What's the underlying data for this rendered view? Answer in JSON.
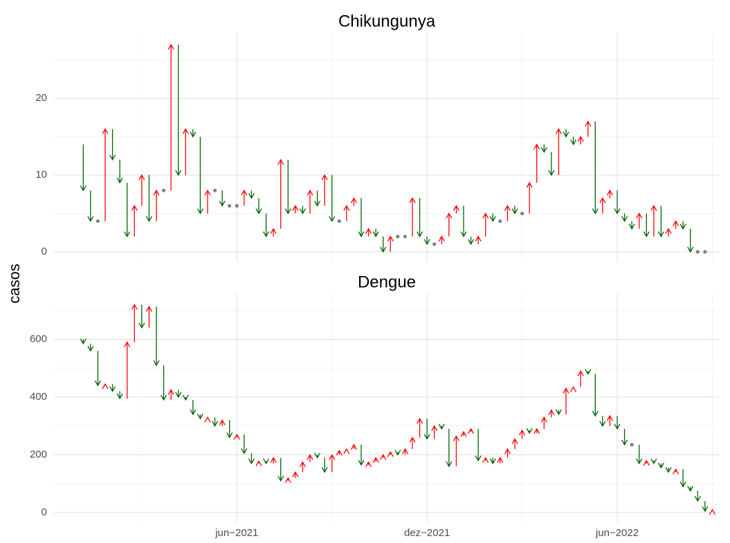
{
  "ylabel": "casos",
  "chart_data": [
    {
      "type": "arrow",
      "title": "Chikungunya",
      "x": [
        1,
        2,
        3,
        4,
        5,
        6,
        7,
        8,
        9,
        10,
        11,
        12,
        13,
        14,
        15,
        16,
        17,
        18,
        19,
        20,
        21,
        22,
        23,
        24,
        25,
        26,
        27,
        28,
        29,
        30,
        31,
        32,
        33,
        34,
        35,
        36,
        37,
        38,
        39,
        40,
        41,
        42,
        43,
        44,
        45,
        46,
        47,
        48,
        49,
        50,
        51,
        52,
        53,
        54,
        55,
        56,
        57,
        58,
        59,
        60,
        61,
        62,
        63,
        64,
        65,
        66,
        67,
        68,
        69,
        70,
        71,
        72,
        73,
        74,
        75,
        76,
        77,
        78,
        79,
        80,
        81,
        82,
        83,
        84,
        85,
        86
      ],
      "start": [
        14,
        8,
        4,
        4,
        16,
        12,
        9,
        2,
        6,
        10,
        4,
        8,
        8,
        27,
        10,
        16,
        15,
        5,
        8,
        8,
        6,
        6,
        6,
        8,
        7,
        5,
        2,
        3,
        12,
        5,
        6,
        5,
        8,
        6,
        10,
        4,
        4,
        6,
        7,
        2,
        3,
        2,
        0,
        2,
        2,
        2,
        7,
        2,
        1,
        1,
        2,
        5,
        6,
        2,
        1,
        2,
        5,
        4,
        4,
        6,
        5,
        5,
        9,
        14,
        13,
        10,
        16,
        15,
        14,
        15,
        17,
        5,
        7,
        8,
        5,
        4,
        3,
        5,
        2,
        6,
        2,
        3,
        4,
        3,
        0,
        0
      ],
      "end": [
        8,
        4,
        4,
        16,
        12,
        9,
        2,
        6,
        10,
        4,
        8,
        8,
        27,
        10,
        16,
        15,
        5,
        8,
        8,
        6,
        6,
        6,
        8,
        7,
        5,
        2,
        3,
        12,
        5,
        6,
        5,
        8,
        6,
        10,
        4,
        4,
        6,
        7,
        2,
        3,
        2,
        0,
        2,
        2,
        2,
        7,
        2,
        1,
        1,
        2,
        5,
        6,
        2,
        1,
        2,
        5,
        4,
        4,
        6,
        5,
        5,
        9,
        14,
        13,
        10,
        16,
        15,
        14,
        15,
        17,
        5,
        7,
        8,
        5,
        4,
        3,
        5,
        2,
        6,
        2,
        3,
        4,
        3,
        0,
        0,
        0
      ],
      "colors": {
        "up": "#ff0000",
        "down": "#006400",
        "same": "#808080"
      },
      "xlim": [
        -3,
        88
      ],
      "ylim": [
        -1.26,
        28.5
      ],
      "yticks": [
        0,
        10,
        20
      ],
      "grid": true
    },
    {
      "type": "arrow",
      "title": "Dengue",
      "x": [
        1,
        2,
        3,
        4,
        5,
        6,
        7,
        8,
        9,
        10,
        11,
        12,
        13,
        14,
        15,
        16,
        17,
        18,
        19,
        20,
        21,
        22,
        23,
        24,
        25,
        26,
        27,
        28,
        29,
        30,
        31,
        32,
        33,
        34,
        35,
        36,
        37,
        38,
        39,
        40,
        41,
        42,
        43,
        44,
        45,
        46,
        47,
        48,
        49,
        50,
        51,
        52,
        53,
        54,
        55,
        56,
        57,
        58,
        59,
        60,
        61,
        62,
        63,
        64,
        65,
        66,
        67,
        68,
        69,
        70,
        71,
        72,
        73,
        74,
        75,
        76,
        77,
        78,
        79,
        80,
        81,
        82,
        83,
        84,
        85,
        86,
        87
      ],
      "start": [
        600,
        585,
        560,
        440,
        445,
        420,
        395,
        590,
        720,
        640,
        713,
        510,
        390,
        425,
        400,
        390,
        340,
        325,
        330,
        300,
        320,
        260,
        270,
        205,
        170,
        178,
        170,
        190,
        110,
        120,
        140,
        175,
        200,
        190,
        140,
        200,
        215,
        220,
        235,
        165,
        175,
        190,
        200,
        210,
        200,
        220,
        260,
        325,
        255,
        300,
        290,
        160,
        265,
        280,
        290,
        180,
        190,
        170,
        190,
        220,
        255,
        285,
        275,
        290,
        330,
        355,
        340,
        430,
        435,
        490,
        480,
        335,
        300,
        335,
        290,
        235,
        235,
        170,
        180,
        170,
        155,
        140,
        150,
        90,
        75,
        40,
        5
      ],
      "end": [
        585,
        560,
        440,
        445,
        420,
        395,
        590,
        720,
        640,
        713,
        510,
        390,
        425,
        400,
        390,
        340,
        325,
        330,
        300,
        320,
        260,
        270,
        205,
        170,
        178,
        170,
        190,
        110,
        120,
        140,
        175,
        200,
        190,
        140,
        200,
        215,
        220,
        235,
        165,
        175,
        190,
        200,
        210,
        200,
        220,
        260,
        325,
        255,
        300,
        290,
        160,
        265,
        280,
        290,
        180,
        190,
        170,
        190,
        220,
        255,
        285,
        275,
        290,
        330,
        355,
        340,
        430,
        435,
        490,
        480,
        335,
        300,
        335,
        290,
        235,
        235,
        170,
        180,
        170,
        155,
        140,
        150,
        90,
        75,
        40,
        5,
        10
      ],
      "colors": {
        "up": "#ff0000",
        "down": "#006400",
        "same": "#808080"
      },
      "xlim": [
        -3,
        88
      ],
      "ylim": [
        -33.5,
        757
      ],
      "yticks": [
        0,
        200,
        400,
        600
      ],
      "xticks": [
        {
          "value": 22,
          "label": "jun−2021"
        },
        {
          "value": 48,
          "label": "dez−2021"
        },
        {
          "value": 74,
          "label": "jun−2022"
        }
      ],
      "grid": true
    }
  ]
}
